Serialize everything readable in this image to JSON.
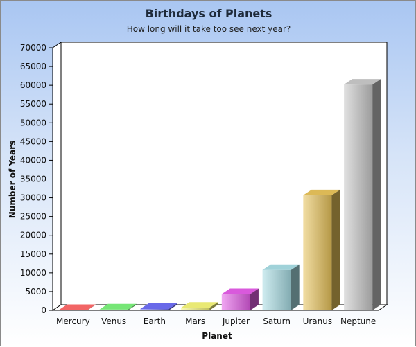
{
  "chart_data": {
    "type": "bar",
    "title": "Birthdays of Planets",
    "subtitle": "How long will it take too see next year?",
    "xlabel": "Planet",
    "ylabel": "Number of Years",
    "categories": [
      "Mercury",
      "Venus",
      "Earth",
      "Mars",
      "Jupiter",
      "Saturn",
      "Uranus",
      "Neptune"
    ],
    "values": [
      88,
      225,
      365,
      687,
      4333,
      10759,
      30687,
      60190
    ],
    "ylim": [
      0,
      70000
    ],
    "yticks": [
      0,
      5000,
      10000,
      15000,
      20000,
      25000,
      30000,
      35000,
      40000,
      45000,
      50000,
      55000,
      60000,
      65000,
      70000
    ],
    "grid": false,
    "legend": "none",
    "colors": [
      "#ff6a6a",
      "#7cf27c",
      "#6e6ef5",
      "#f5f57a",
      "#e45ee8",
      "#a8dde4",
      "#e8c35a",
      "#c8c8c8"
    ],
    "view": "3d"
  }
}
